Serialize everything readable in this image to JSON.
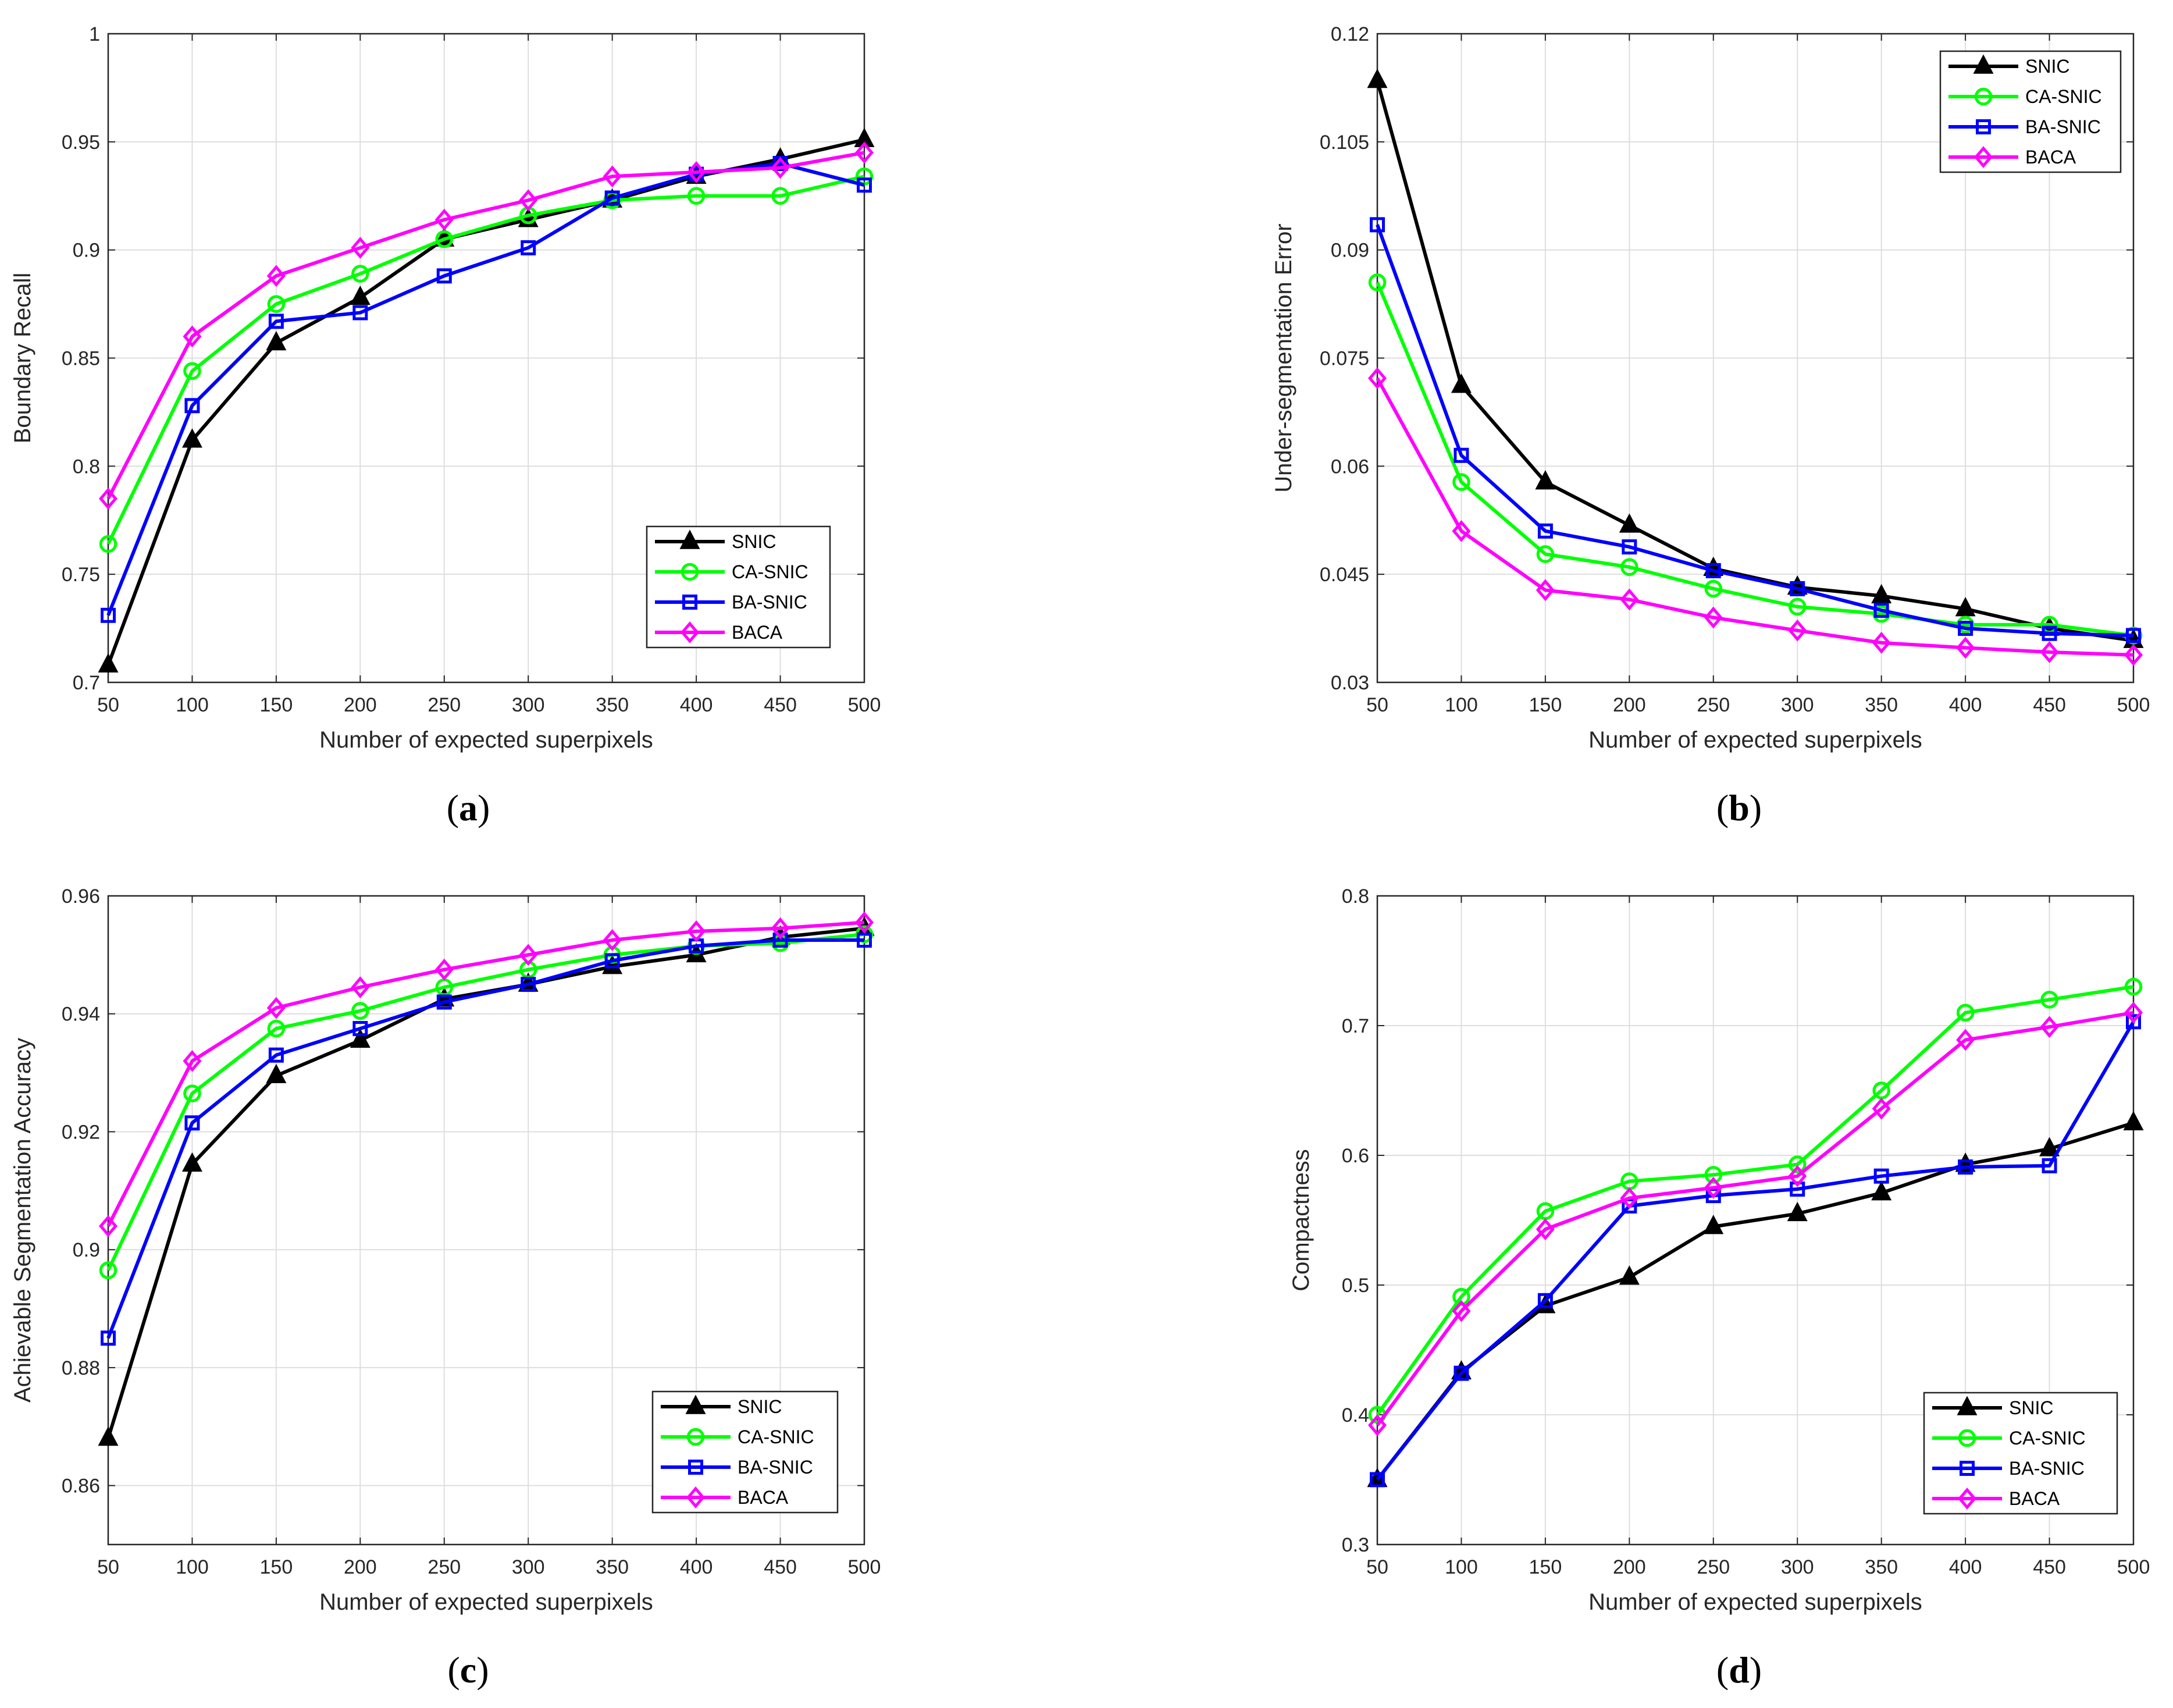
{
  "chart_data": [
    {
      "type": "line",
      "caption": "a",
      "xlabel": "Number of expected superpixels",
      "ylabel": "Boundary Recall",
      "x": [
        50,
        100,
        150,
        200,
        250,
        300,
        350,
        400,
        450,
        500
      ],
      "xticks": [
        "50",
        "100",
        "150",
        "200",
        "250",
        "300",
        "350",
        "400",
        "450",
        "500"
      ],
      "ylim": [
        0.7,
        1.0
      ],
      "yticks": [
        0.7,
        0.75,
        0.8,
        0.85,
        0.9,
        0.95,
        1.0
      ],
      "ytick_labels": [
        "0.7",
        "0.75",
        "0.8",
        "0.85",
        "0.9",
        "0.95",
        "1"
      ],
      "grid": true,
      "legend_position": "lower-right",
      "series": [
        {
          "name": "SNIC",
          "color": "#000000",
          "marker": "triangle",
          "values": [
            0.708,
            0.812,
            0.857,
            0.878,
            0.905,
            0.914,
            0.923,
            0.934,
            0.942,
            0.951
          ]
        },
        {
          "name": "CA-SNIC",
          "color": "#00ff00",
          "marker": "circle",
          "values": [
            0.764,
            0.844,
            0.875,
            0.889,
            0.905,
            0.916,
            0.923,
            0.925,
            0.925,
            0.934
          ]
        },
        {
          "name": "BA-SNIC",
          "color": "#0000ff",
          "marker": "square",
          "values": [
            0.731,
            0.828,
            0.867,
            0.871,
            0.888,
            0.901,
            0.924,
            0.935,
            0.94,
            0.93
          ]
        },
        {
          "name": "BACA",
          "color": "#ff00ff",
          "marker": "diamond",
          "values": [
            0.785,
            0.86,
            0.888,
            0.901,
            0.914,
            0.923,
            0.934,
            0.936,
            0.938,
            0.945
          ]
        }
      ]
    },
    {
      "type": "line",
      "caption": "b",
      "xlabel": "Number of expected superpixels",
      "ylabel": "Under-segmentation Error",
      "x": [
        50,
        100,
        150,
        200,
        250,
        300,
        350,
        400,
        450,
        500
      ],
      "xticks": [
        "50",
        "100",
        "150",
        "200",
        "250",
        "300",
        "350",
        "400",
        "450",
        "500"
      ],
      "ylim": [
        0.03,
        0.12
      ],
      "yticks": [
        0.03,
        0.045,
        0.06,
        0.075,
        0.09,
        0.105,
        0.12
      ],
      "ytick_labels": [
        "0.03",
        "0.045",
        "0.06",
        "0.075",
        "0.09",
        "0.105",
        "0.12"
      ],
      "grid": true,
      "legend_position": "top-right",
      "series": [
        {
          "name": "SNIC",
          "color": "#000000",
          "marker": "triangle",
          "values": [
            0.1135,
            0.0712,
            0.0578,
            0.0518,
            0.0458,
            0.0432,
            0.042,
            0.0402,
            0.0375,
            0.0358
          ]
        },
        {
          "name": "CA-SNIC",
          "color": "#00ff00",
          "marker": "circle",
          "values": [
            0.0855,
            0.0578,
            0.0478,
            0.046,
            0.043,
            0.0405,
            0.0395,
            0.038,
            0.038,
            0.0365
          ]
        },
        {
          "name": "BA-SNIC",
          "color": "#0000ff",
          "marker": "square",
          "values": [
            0.0935,
            0.0615,
            0.051,
            0.0488,
            0.0455,
            0.043,
            0.04,
            0.0375,
            0.0368,
            0.0365
          ]
        },
        {
          "name": "BACA",
          "color": "#ff00ff",
          "marker": "diamond",
          "values": [
            0.0722,
            0.051,
            0.0428,
            0.0415,
            0.039,
            0.0372,
            0.0355,
            0.0348,
            0.0342,
            0.0338
          ]
        }
      ]
    },
    {
      "type": "line",
      "caption": "c",
      "xlabel": "Number of expected superpixels",
      "ylabel": "Achievable Segmentation Accuracy",
      "x": [
        50,
        100,
        150,
        200,
        250,
        300,
        350,
        400,
        450,
        500
      ],
      "xticks": [
        "50",
        "100",
        "150",
        "200",
        "250",
        "300",
        "350",
        "400",
        "450",
        "500"
      ],
      "ylim": [
        0.85,
        0.96
      ],
      "yticks": [
        0.86,
        0.88,
        0.9,
        0.92,
        0.94,
        0.96
      ],
      "ytick_labels": [
        "0.86",
        "0.88",
        "0.9",
        "0.92",
        "0.94",
        "0.96"
      ],
      "grid": true,
      "legend_position": "lower-right",
      "series": [
        {
          "name": "SNIC",
          "color": "#000000",
          "marker": "triangle",
          "values": [
            0.868,
            0.9145,
            0.9295,
            0.9355,
            0.9425,
            0.945,
            0.948,
            0.95,
            0.953,
            0.9545
          ]
        },
        {
          "name": "CA-SNIC",
          "color": "#00ff00",
          "marker": "circle",
          "values": [
            0.8965,
            0.9265,
            0.9375,
            0.9405,
            0.9445,
            0.9475,
            0.95,
            0.9515,
            0.952,
            0.9535
          ]
        },
        {
          "name": "BA-SNIC",
          "color": "#0000ff",
          "marker": "square",
          "values": [
            0.885,
            0.9215,
            0.933,
            0.9375,
            0.942,
            0.945,
            0.949,
            0.9515,
            0.9525,
            0.9525
          ]
        },
        {
          "name": "BACA",
          "color": "#ff00ff",
          "marker": "diamond",
          "values": [
            0.904,
            0.932,
            0.941,
            0.9445,
            0.9475,
            0.95,
            0.9525,
            0.954,
            0.9545,
            0.9555
          ]
        }
      ]
    },
    {
      "type": "line",
      "caption": "d",
      "xlabel": "Number of expected superpixels",
      "ylabel": "Compactness",
      "x": [
        50,
        100,
        150,
        200,
        250,
        300,
        350,
        400,
        450,
        500
      ],
      "xticks": [
        "50",
        "100",
        "150",
        "200",
        "250",
        "300",
        "350",
        "400",
        "450",
        "500"
      ],
      "ylim": [
        0.3,
        0.8
      ],
      "yticks": [
        0.3,
        0.4,
        0.5,
        0.6,
        0.7,
        0.8
      ],
      "ytick_labels": [
        "0.3",
        "0.4",
        "0.5",
        "0.6",
        "0.7",
        "0.8"
      ],
      "grid": true,
      "legend_position": "lower-right",
      "series": [
        {
          "name": "SNIC",
          "color": "#000000",
          "marker": "triangle",
          "values": [
            0.35,
            0.433,
            0.484,
            0.506,
            0.545,
            0.555,
            0.571,
            0.593,
            0.605,
            0.625
          ]
        },
        {
          "name": "CA-SNIC",
          "color": "#00ff00",
          "marker": "circle",
          "values": [
            0.4,
            0.491,
            0.557,
            0.58,
            0.585,
            0.593,
            0.65,
            0.71,
            0.72,
            0.73
          ]
        },
        {
          "name": "BA-SNIC",
          "color": "#0000ff",
          "marker": "square",
          "values": [
            0.35,
            0.432,
            0.488,
            0.561,
            0.569,
            0.574,
            0.584,
            0.591,
            0.592,
            0.703
          ]
        },
        {
          "name": "BACA",
          "color": "#ff00ff",
          "marker": "diamond",
          "values": [
            0.392,
            0.48,
            0.543,
            0.567,
            0.575,
            0.584,
            0.636,
            0.689,
            0.699,
            0.71
          ]
        }
      ]
    }
  ]
}
